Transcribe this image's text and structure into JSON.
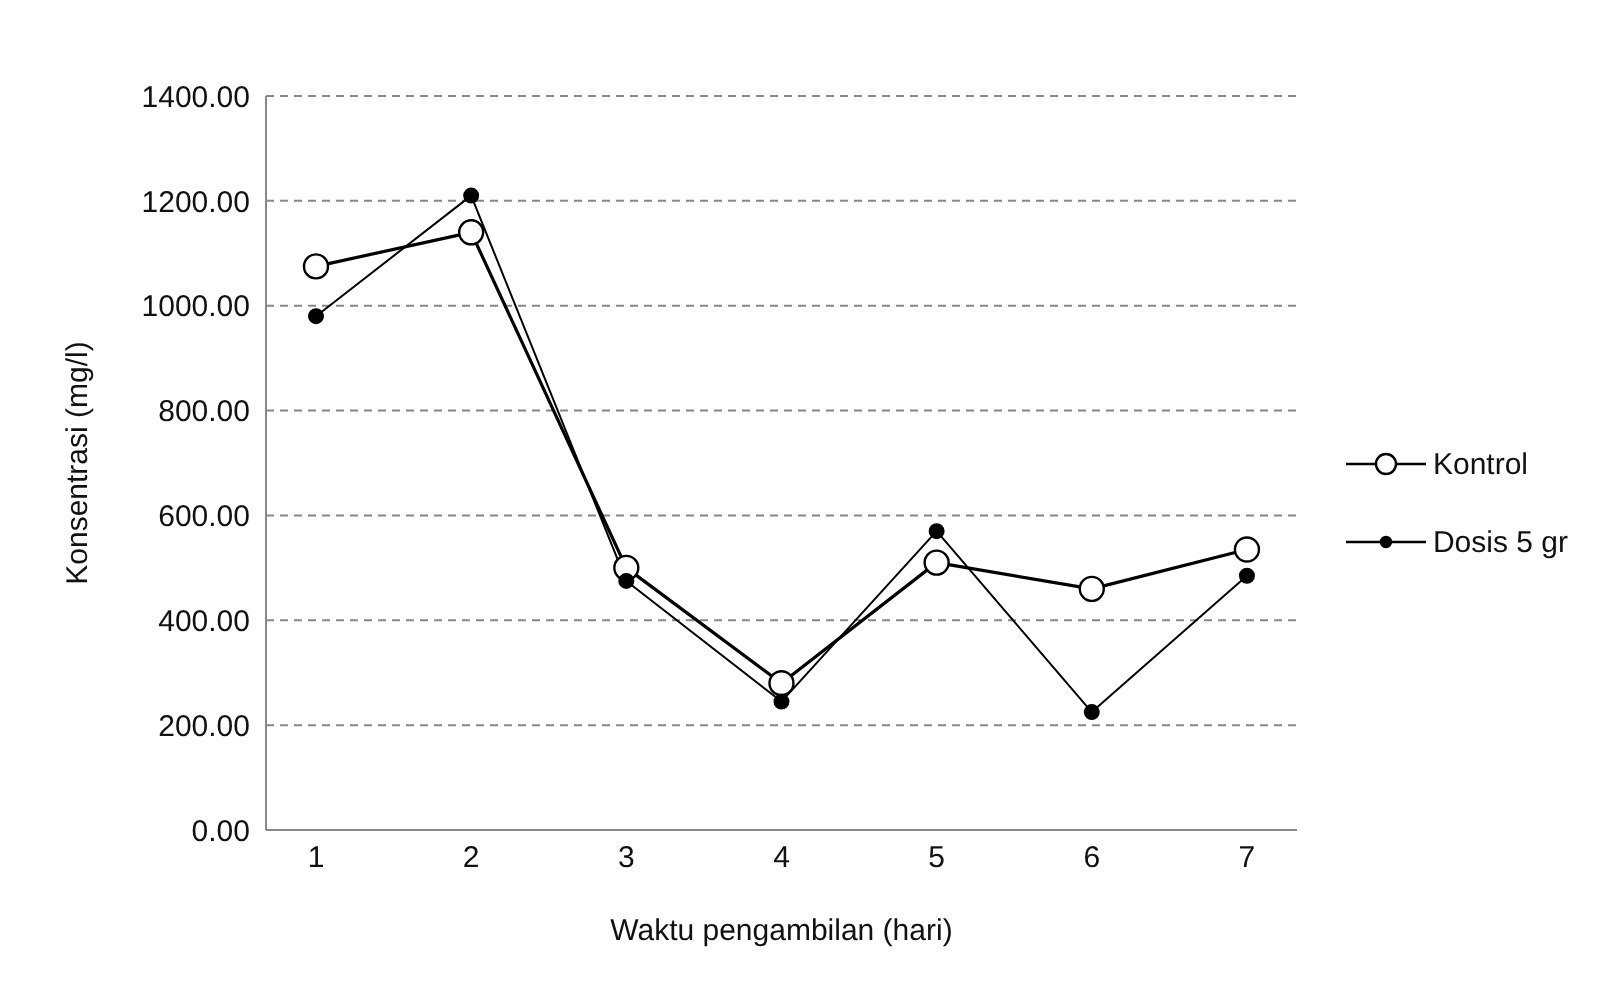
{
  "chart_data": {
    "type": "line",
    "xlabel": "Waktu pengambilan (hari)",
    "ylabel": "Konsentrasi (mg/l)",
    "categories": [
      "1",
      "2",
      "3",
      "4",
      "5",
      "6",
      "7"
    ],
    "series": [
      {
        "name": "Kontrol",
        "color": "#000000",
        "marker": "circle",
        "values": [
          1075,
          1140,
          500,
          280,
          510,
          460,
          535
        ]
      },
      {
        "name": "Dosis 5 gr",
        "color": "#000000",
        "marker": "dot",
        "values": [
          980,
          1210,
          475,
          245,
          570,
          225,
          485
        ]
      }
    ],
    "ylim": [
      0,
      1400
    ],
    "yticks": [
      {
        "value": 0,
        "label": "0.00"
      },
      {
        "value": 200,
        "label": "200.00"
      },
      {
        "value": 400,
        "label": "400.00"
      },
      {
        "value": 600,
        "label": "600.00"
      },
      {
        "value": 800,
        "label": "800.00"
      },
      {
        "value": 1000,
        "label": "1000.00"
      },
      {
        "value": 1200,
        "label": "1200.00"
      },
      {
        "value": 1400,
        "label": "1400.00"
      }
    ],
    "grid": "y",
    "legend": "right"
  }
}
